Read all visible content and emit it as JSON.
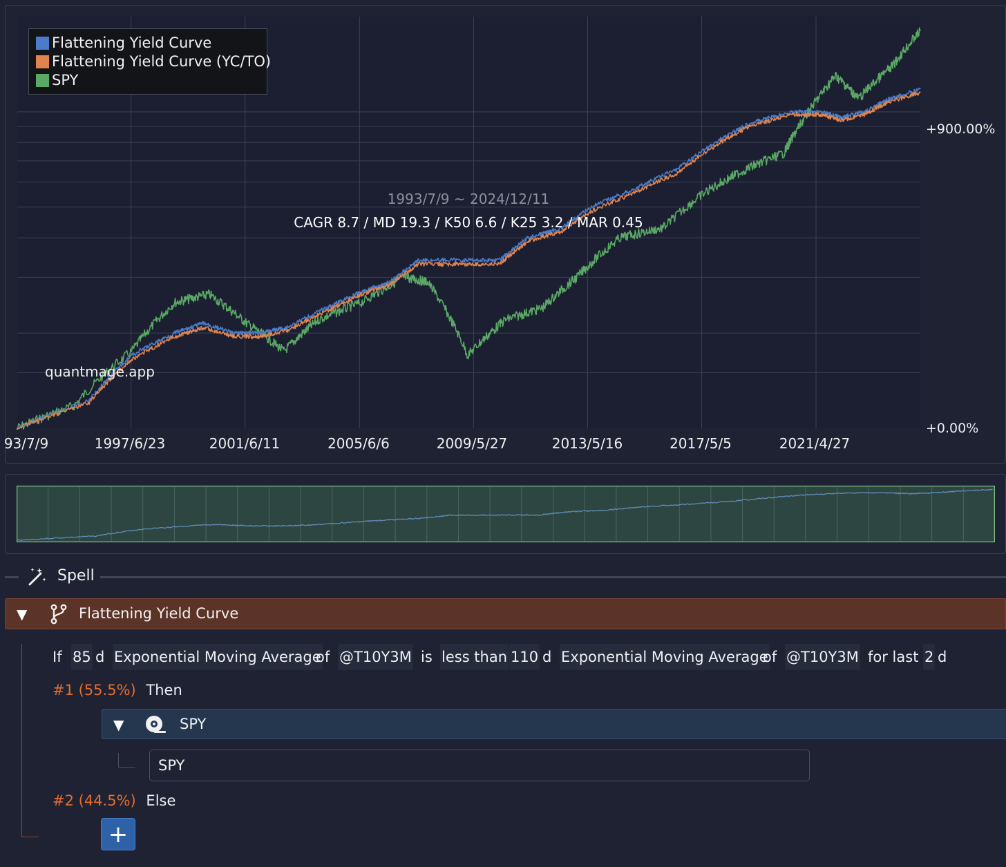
{
  "chart": {
    "range_text": "1993/7/9 ~ 2024/12/11",
    "stats_text": "CAGR 8.7 / MD 19.3 / K50 6.6 / K25 3.2 / MAR 0.45",
    "watermark": "quantmage.app",
    "y_ticks": [
      "+900.00%",
      "+0.00%"
    ],
    "x_ticks": [
      "93/7/9",
      "1997/6/23",
      "2001/6/11",
      "2005/6/6",
      "2009/5/27",
      "2013/5/16",
      "2017/5/5",
      "2021/4/27"
    ],
    "legend": [
      {
        "label": "Flattening Yield Curve",
        "color": "#4a7cc9"
      },
      {
        "label": "Flattening Yield Curve (YC/TO)",
        "color": "#e0834e"
      },
      {
        "label": "SPY",
        "color": "#5aa865"
      }
    ]
  },
  "chart_data": {
    "type": "line",
    "title": "",
    "x_range": [
      "1993/7/9",
      "2024/12/11"
    ],
    "y_scale": "log",
    "y_unit": "% return",
    "grid": true,
    "legend_position": "top-left",
    "series": [
      {
        "name": "Flattening Yield Curve",
        "color": "#4a7cc9",
        "x": [
          1993.5,
          1996.0,
          1997.5,
          1999.0,
          2000.0,
          2001.0,
          2002.0,
          2003.0,
          2004.5,
          2005.5,
          2006.5,
          2007.5,
          2009.0,
          2010.3,
          2011.3,
          2012.5,
          2013.5,
          2015.0,
          2016.5,
          2018.0,
          2019.0,
          2020.5,
          2021.5,
          2022.2,
          2023.0,
          2023.8,
          2024.95
        ],
        "y": [
          0,
          22,
          70,
          100,
          115,
          100,
          100,
          110,
          145,
          170,
          190,
          240,
          240,
          240,
          300,
          330,
          400,
          470,
          560,
          720,
          820,
          900,
          900,
          860,
          900,
          990,
          1080
        ]
      },
      {
        "name": "Flattening Yield Curve (YC/TO)",
        "color": "#e0834e",
        "x": [
          1993.5,
          1996.0,
          1997.5,
          1999.0,
          2000.0,
          2001.0,
          2002.0,
          2003.0,
          2004.5,
          2005.5,
          2006.5,
          2007.5,
          2009.0,
          2010.3,
          2011.3,
          2012.5,
          2013.5,
          2015.0,
          2016.5,
          2018.0,
          2019.0,
          2020.5,
          2021.5,
          2022.2,
          2023.0,
          2023.8,
          2024.95
        ],
        "y": [
          0,
          20,
          65,
          95,
          108,
          95,
          95,
          105,
          140,
          165,
          185,
          230,
          230,
          230,
          290,
          320,
          385,
          455,
          540,
          700,
          800,
          880,
          880,
          840,
          880,
          970,
          1050
        ]
      },
      {
        "name": "SPY",
        "color": "#5aa865",
        "x": [
          1993.5,
          1995.5,
          1997.5,
          1999.0,
          2000.2,
          2001.5,
          2002.8,
          2004.0,
          2005.5,
          2007.0,
          2007.8,
          2009.2,
          2010.5,
          2011.8,
          2013.0,
          2014.5,
          2016.0,
          2017.5,
          2018.9,
          2020.2,
          2021.0,
          2022.0,
          2022.8,
          2024.0,
          2024.95
        ],
        "y": [
          0,
          18,
          75,
          150,
          165,
          115,
          75,
          120,
          150,
          200,
          190,
          70,
          120,
          140,
          200,
          300,
          330,
          460,
          560,
          640,
          880,
          1200,
          1000,
          1300,
          1700
        ]
      }
    ]
  },
  "spell": {
    "label": "Spell"
  },
  "if_block": {
    "title": "Flattening Yield Curve"
  },
  "condition": {
    "if": "If",
    "left_period": "85",
    "left_unit": "d",
    "left_indicator": "Exponential Moving Average",
    "of1": "of",
    "left_ticker": "@T10Y3M",
    "is": "is",
    "comparator": "less than",
    "right_period": "110",
    "right_unit": "d",
    "right_indicator": "Exponential Moving Average",
    "of2": "of",
    "right_ticker": "@T10Y3M",
    "for_last": "for last",
    "days": "2",
    "days_unit": "d"
  },
  "branches": {
    "then": {
      "pct": "#1 (55.5%)",
      "word": "Then"
    },
    "else": {
      "pct": "#2 (44.5%)",
      "word": "Else"
    }
  },
  "asset_block": {
    "title": "SPY"
  },
  "ticker_field": {
    "value": "SPY"
  },
  "add_button": {
    "label": "+"
  }
}
